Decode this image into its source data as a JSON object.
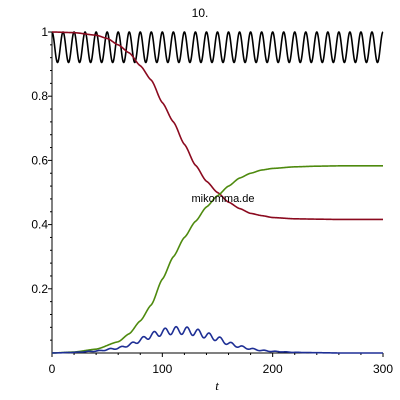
{
  "chart_data": {
    "type": "line",
    "title": "10.",
    "xlabel": "t",
    "ylabel": "",
    "xlim": [
      0,
      300
    ],
    "ylim": [
      0,
      1
    ],
    "xticks": [
      0,
      100,
      200,
      300
    ],
    "yticks": [
      0.2,
      0.4,
      0.6,
      0.8,
      1
    ],
    "ytick_labels": [
      "0.2",
      "0.4",
      "0.6",
      "0.8",
      "1"
    ],
    "grid": false,
    "watermark": "mikomma.de",
    "series": [
      {
        "color": "#000000",
        "style": "oscillation",
        "description_values": {
          "min": 0.905,
          "max": 1.0,
          "cycles": 30
        }
      },
      {
        "color": "#8b0a1f",
        "x": [
          0,
          20,
          40,
          50,
          60,
          70,
          80,
          90,
          100,
          110,
          120,
          130,
          140,
          150,
          160,
          170,
          180,
          190,
          200,
          220,
          240,
          260,
          280,
          300
        ],
        "y": [
          1.0,
          0.998,
          0.99,
          0.98,
          0.96,
          0.935,
          0.895,
          0.85,
          0.78,
          0.72,
          0.65,
          0.585,
          0.535,
          0.5,
          0.47,
          0.45,
          0.435,
          0.428,
          0.422,
          0.418,
          0.417,
          0.416,
          0.416,
          0.416
        ]
      },
      {
        "color": "#4e8a0e",
        "x": [
          0,
          20,
          40,
          60,
          70,
          80,
          90,
          100,
          110,
          120,
          130,
          140,
          150,
          160,
          170,
          180,
          190,
          200,
          220,
          240,
          260,
          280,
          300
        ],
        "y": [
          0.0,
          0.003,
          0.012,
          0.035,
          0.06,
          0.1,
          0.15,
          0.23,
          0.3,
          0.36,
          0.41,
          0.455,
          0.49,
          0.52,
          0.545,
          0.56,
          0.57,
          0.575,
          0.58,
          0.582,
          0.583,
          0.583,
          0.583
        ]
      },
      {
        "color": "#1e2f95",
        "x": [
          0,
          20,
          40,
          60,
          70,
          80,
          90,
          100,
          110,
          120,
          130,
          140,
          150,
          160,
          170,
          180,
          190,
          200,
          220,
          240,
          260,
          280,
          300
        ],
        "y": [
          0.0,
          0.002,
          0.006,
          0.015,
          0.025,
          0.04,
          0.055,
          0.065,
          0.07,
          0.07,
          0.065,
          0.055,
          0.045,
          0.03,
          0.02,
          0.013,
          0.008,
          0.005,
          0.002,
          0.001,
          0.0,
          0.0,
          0.0
        ],
        "ripple": {
          "amplitude": 0.012,
          "period": 10
        }
      }
    ]
  }
}
